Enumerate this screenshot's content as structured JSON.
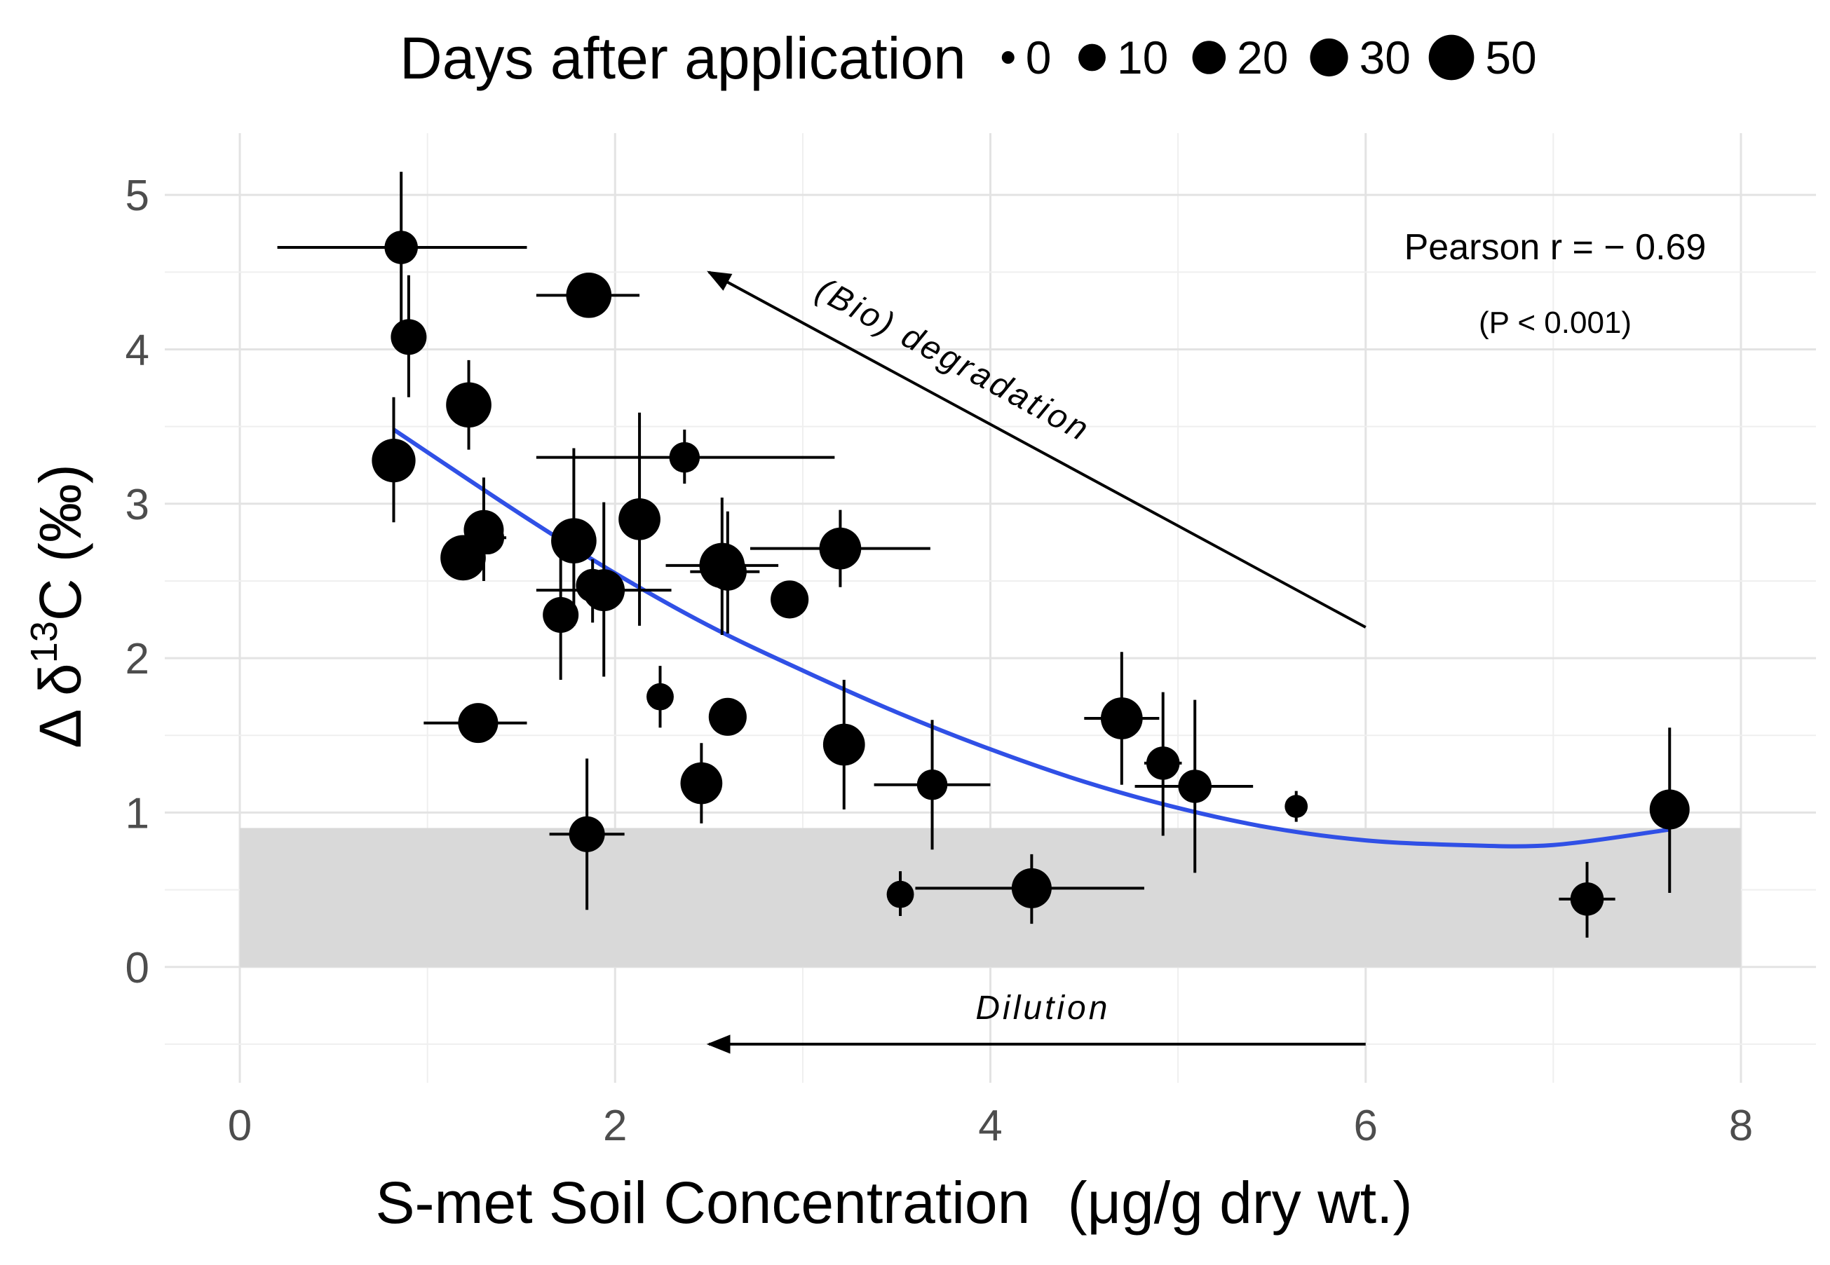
{
  "chart_data": {
    "type": "scatter",
    "title": "",
    "xlabel": "S-met Soil Concentration",
    "xlabel_unit": "(μg/g dry wt.)",
    "ylabel_prefix": "Δ δ",
    "ylabel_superscript": "13",
    "ylabel_suffix": "C (‰)",
    "xlim": [
      -0.4,
      8.4
    ],
    "ylim": [
      -0.75,
      5.4
    ],
    "x_ticks": [
      0,
      2,
      4,
      6,
      8
    ],
    "y_ticks": [
      0,
      1,
      2,
      3,
      4,
      5
    ],
    "x_tick_labels": [
      "0",
      "2",
      "4",
      "6",
      "8"
    ],
    "y_tick_labels": [
      "0",
      "1",
      "2",
      "3",
      "4",
      "5"
    ],
    "grid": true,
    "legend": {
      "title": "Days after application",
      "placement": "top",
      "entries": [
        {
          "label": "0",
          "days": 0
        },
        {
          "label": "10",
          "days": 10
        },
        {
          "label": "20",
          "days": 20
        },
        {
          "label": "30",
          "days": 30
        },
        {
          "label": "50",
          "days": 50
        }
      ]
    },
    "shaded_band": {
      "x": [
        0,
        8
      ],
      "y": [
        0,
        0.9
      ],
      "color": "#d9d9d9"
    },
    "points": [
      {
        "x": 0.86,
        "y": 4.66,
        "xmin": 0.2,
        "xmax": 1.53,
        "ymin": 4.17,
        "ymax": 5.15,
        "days": 20
      },
      {
        "x": 0.9,
        "y": 4.08,
        "xmin": 0.9,
        "xmax": 0.9,
        "ymin": 3.69,
        "ymax": 4.48,
        "days": 25
      },
      {
        "x": 0.82,
        "y": 3.28,
        "xmin": 0.72,
        "xmax": 0.92,
        "ymin": 2.88,
        "ymax": 3.69,
        "days": 45
      },
      {
        "x": 1.22,
        "y": 3.64,
        "xmin": 1.22,
        "xmax": 1.22,
        "ymin": 3.35,
        "ymax": 3.93,
        "days": 50
      },
      {
        "x": 1.19,
        "y": 2.65,
        "xmin": 1.19,
        "xmax": 1.19,
        "ymin": 2.65,
        "ymax": 2.65,
        "days": 50
      },
      {
        "x": 1.3,
        "y": 2.83,
        "xmin": 1.3,
        "xmax": 1.3,
        "ymin": 2.5,
        "ymax": 3.17,
        "days": 35
      },
      {
        "x": 1.32,
        "y": 2.78,
        "xmin": 1.22,
        "xmax": 1.42,
        "ymin": 2.78,
        "ymax": 2.78,
        "days": 20
      },
      {
        "x": 1.86,
        "y": 4.35,
        "xmin": 1.58,
        "xmax": 2.13,
        "ymin": 4.22,
        "ymax": 4.49,
        "days": 50
      },
      {
        "x": 1.27,
        "y": 1.58,
        "xmin": 0.98,
        "xmax": 1.53,
        "ymin": 1.48,
        "ymax": 1.68,
        "days": 35
      },
      {
        "x": 1.78,
        "y": 2.76,
        "xmin": 1.78,
        "xmax": 1.78,
        "ymin": 2.21,
        "ymax": 3.36,
        "days": 50
      },
      {
        "x": 1.71,
        "y": 2.28,
        "xmin": 1.71,
        "xmax": 1.71,
        "ymin": 1.86,
        "ymax": 2.66,
        "days": 25
      },
      {
        "x": 1.88,
        "y": 2.47,
        "xmin": 1.88,
        "xmax": 1.88,
        "ymin": 2.23,
        "ymax": 2.64,
        "days": 20
      },
      {
        "x": 1.94,
        "y": 2.44,
        "xmin": 1.58,
        "xmax": 2.3,
        "ymin": 1.88,
        "ymax": 3.01,
        "days": 40
      },
      {
        "x": 2.13,
        "y": 2.9,
        "xmin": 2.05,
        "xmax": 2.21,
        "ymin": 2.21,
        "ymax": 3.59,
        "days": 40
      },
      {
        "x": 1.85,
        "y": 0.86,
        "xmin": 1.65,
        "xmax": 2.05,
        "ymin": 0.37,
        "ymax": 1.35,
        "days": 25
      },
      {
        "x": 2.37,
        "y": 3.3,
        "xmin": 1.58,
        "xmax": 3.17,
        "ymin": 3.13,
        "ymax": 3.48,
        "days": 15
      },
      {
        "x": 2.24,
        "y": 1.75,
        "xmin": 2.19,
        "xmax": 2.29,
        "ymin": 1.55,
        "ymax": 1.95,
        "days": 10
      },
      {
        "x": 2.57,
        "y": 2.6,
        "xmin": 2.27,
        "xmax": 2.87,
        "ymin": 2.15,
        "ymax": 3.04,
        "days": 50
      },
      {
        "x": 2.6,
        "y": 2.56,
        "xmin": 2.4,
        "xmax": 2.77,
        "ymin": 2.16,
        "ymax": 2.95,
        "days": 30
      },
      {
        "x": 2.6,
        "y": 1.62,
        "xmin": 2.6,
        "xmax": 2.6,
        "ymin": 1.5,
        "ymax": 1.74,
        "days": 30
      },
      {
        "x": 2.46,
        "y": 1.19,
        "xmin": 2.46,
        "xmax": 2.46,
        "ymin": 0.93,
        "ymax": 1.45,
        "days": 40
      },
      {
        "x": 2.93,
        "y": 2.38,
        "xmin": 2.88,
        "xmax": 2.98,
        "ymin": 2.28,
        "ymax": 2.48,
        "days": 30
      },
      {
        "x": 3.2,
        "y": 2.71,
        "xmin": 2.72,
        "xmax": 3.68,
        "ymin": 2.46,
        "ymax": 2.96,
        "days": 40
      },
      {
        "x": 3.22,
        "y": 1.44,
        "xmin": 3.22,
        "xmax": 3.22,
        "ymin": 1.02,
        "ymax": 1.86,
        "days": 40
      },
      {
        "x": 3.69,
        "y": 1.18,
        "xmin": 3.38,
        "xmax": 4.0,
        "ymin": 0.76,
        "ymax": 1.6,
        "days": 15
      },
      {
        "x": 3.52,
        "y": 0.47,
        "xmin": 3.45,
        "xmax": 3.59,
        "ymin": 0.33,
        "ymax": 0.62,
        "days": 10
      },
      {
        "x": 4.22,
        "y": 0.51,
        "xmin": 3.6,
        "xmax": 4.82,
        "ymin": 0.28,
        "ymax": 0.73,
        "days": 35
      },
      {
        "x": 4.7,
        "y": 1.61,
        "xmin": 4.5,
        "xmax": 4.9,
        "ymin": 1.18,
        "ymax": 2.04,
        "days": 40
      },
      {
        "x": 4.92,
        "y": 1.32,
        "xmin": 4.82,
        "xmax": 5.02,
        "ymin": 0.85,
        "ymax": 1.78,
        "days": 20
      },
      {
        "x": 5.09,
        "y": 1.17,
        "xmin": 4.77,
        "xmax": 5.4,
        "ymin": 0.61,
        "ymax": 1.73,
        "days": 20
      },
      {
        "x": 5.63,
        "y": 1.04,
        "xmin": 5.58,
        "xmax": 5.68,
        "ymin": 0.94,
        "ymax": 1.14,
        "days": 5
      },
      {
        "x": 7.18,
        "y": 0.44,
        "xmin": 7.03,
        "xmax": 7.33,
        "ymin": 0.19,
        "ymax": 0.68,
        "days": 20
      },
      {
        "x": 7.62,
        "y": 1.02,
        "xmin": 7.52,
        "xmax": 7.72,
        "ymin": 0.48,
        "ymax": 1.55,
        "days": 35
      }
    ],
    "fit": {
      "type": "quadratic",
      "color": "#3050e6",
      "x": [
        0.82,
        1.5,
        2.0,
        2.5,
        3.0,
        3.5,
        4.0,
        4.5,
        5.0,
        5.5,
        6.0,
        6.5,
        7.0,
        7.62
      ],
      "y": [
        3.48,
        2.93,
        2.55,
        2.21,
        1.92,
        1.65,
        1.41,
        1.2,
        1.03,
        0.9,
        0.82,
        0.79,
        0.79,
        0.89
      ]
    },
    "annotations": {
      "pearson": "Pearson r = − 0.69",
      "p_value": "(P < 0.001)",
      "degradation_label": "(Bio) degradation",
      "dilution_label": "Dilution",
      "degradation_arrow": {
        "from": [
          6.0,
          2.2
        ],
        "to": [
          2.5,
          4.5
        ]
      },
      "dilution_arrow": {
        "from": [
          6.0,
          -0.5
        ],
        "to": [
          2.5,
          -0.5
        ]
      }
    }
  }
}
